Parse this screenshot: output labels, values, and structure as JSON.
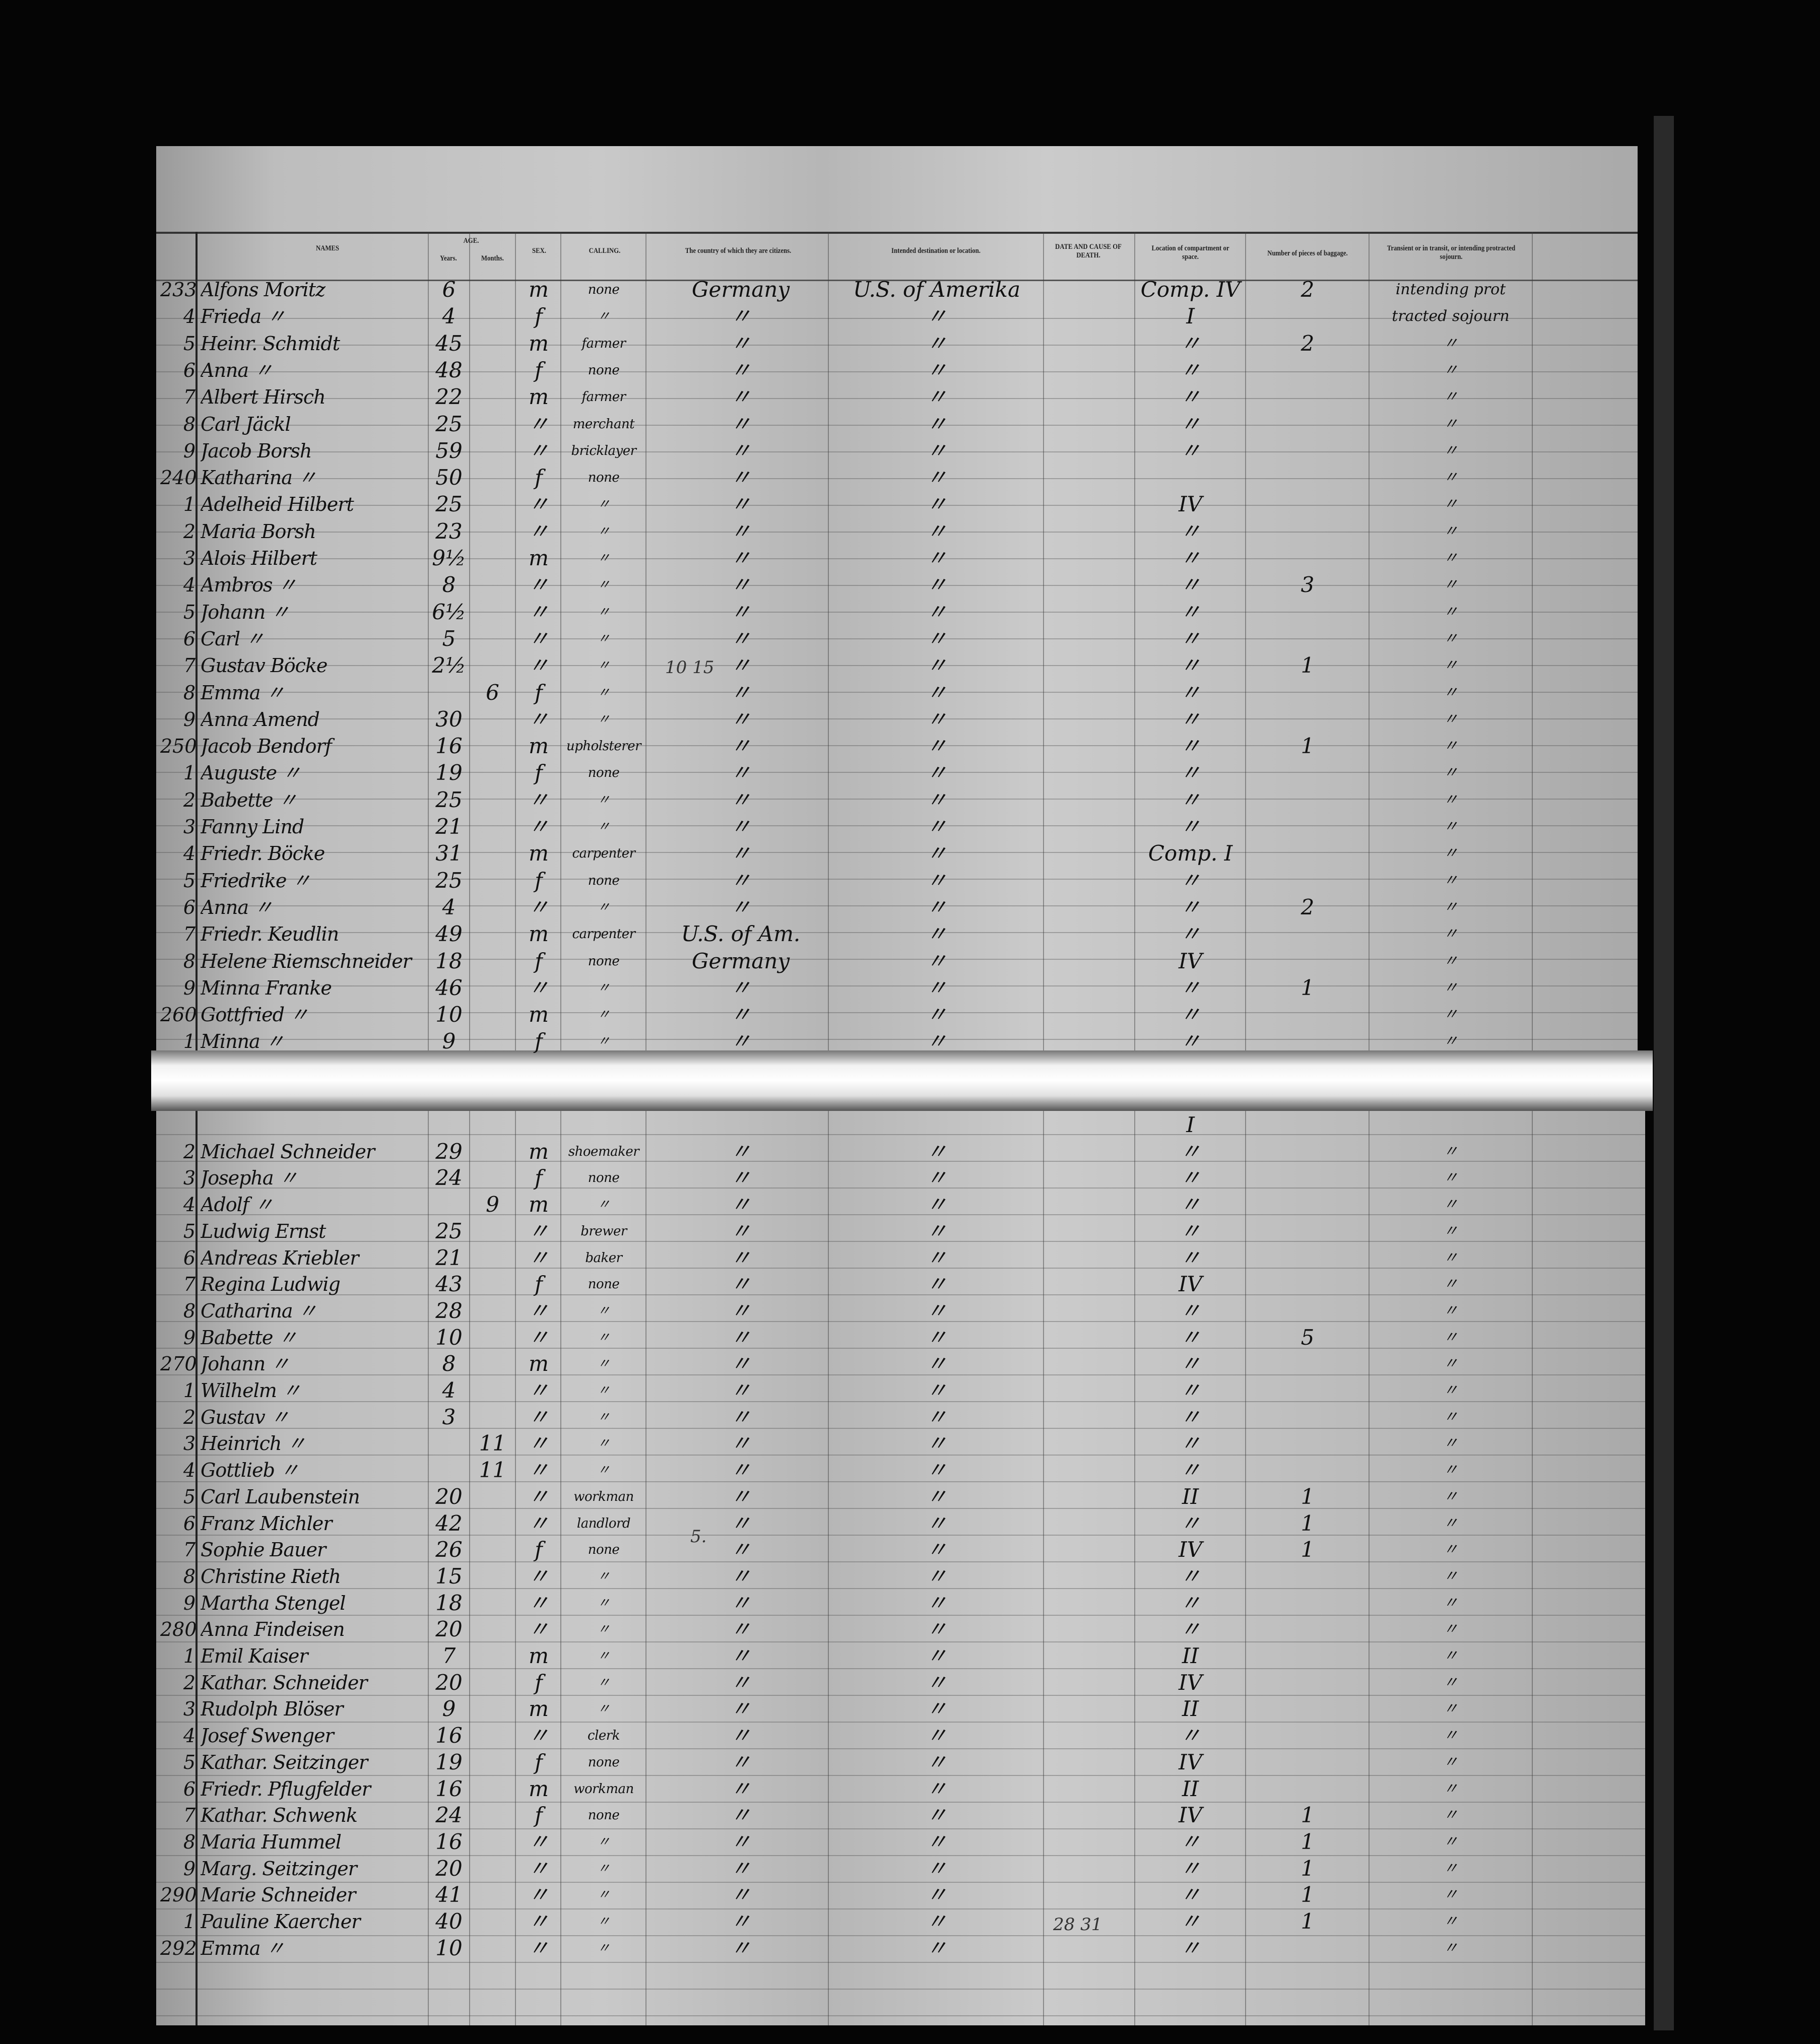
{
  "header": {
    "names": "NAMES",
    "age": "AGE.",
    "years": "Years.",
    "months": "Months.",
    "sex": "SEX.",
    "calling": "CALLING.",
    "country": "The country of which they are citizens.",
    "destination": "Intended destination or location.",
    "death": "DATE AND CAUSE OF DEATH.",
    "location": "Location of compartment or space.",
    "baggage": "Number of pieces of baggage.",
    "transient": "Transient or in transit, or intending protracted sojourn."
  },
  "annotations": {
    "a": "10 15",
    "b": "5.",
    "c": "28 31"
  },
  "rows_top": [
    [
      "233",
      "Alfons Moritz",
      "6",
      "",
      "m",
      "none",
      "Germany",
      "U.S. of Amerika",
      "Comp. IV",
      "2",
      "intending prot"
    ],
    [
      "4",
      "Frieda  〃",
      "4",
      "",
      "f",
      "〃",
      "〃",
      "〃",
      "I",
      "",
      "tracted sojourn"
    ],
    [
      "5",
      "Heinr. Schmidt",
      "45",
      "",
      "m",
      "farmer",
      "〃",
      "〃",
      "〃",
      "2",
      "〃"
    ],
    [
      "6",
      "Anna  〃",
      "48",
      "",
      "f",
      "none",
      "〃",
      "〃",
      "〃",
      "",
      "〃"
    ],
    [
      "7",
      "Albert Hirsch",
      "22",
      "",
      "m",
      "farmer",
      "〃",
      "〃",
      "〃",
      "",
      "〃"
    ],
    [
      "8",
      "Carl Jäckl",
      "25",
      "",
      "〃",
      "merchant",
      "〃",
      "〃",
      "〃",
      "",
      "〃"
    ],
    [
      "9",
      "Jacob Borsh",
      "59",
      "",
      "〃",
      "bricklayer",
      "〃",
      "〃",
      "〃",
      "",
      "〃"
    ],
    [
      "240",
      "Katharina  〃",
      "50",
      "",
      "f",
      "none",
      "〃",
      "〃",
      "",
      "",
      "〃"
    ],
    [
      "1",
      "Adelheid Hilbert",
      "25",
      "",
      "〃",
      "〃",
      "〃",
      "〃",
      "IV",
      "",
      "〃"
    ],
    [
      "2",
      "Maria Borsh",
      "23",
      "",
      "〃",
      "〃",
      "〃",
      "〃",
      "〃",
      "",
      "〃"
    ],
    [
      "3",
      "Alois Hilbert",
      "9½",
      "",
      "m",
      "〃",
      "〃",
      "〃",
      "〃",
      "",
      "〃"
    ],
    [
      "4",
      "Ambros  〃",
      "8",
      "",
      "〃",
      "〃",
      "〃",
      "〃",
      "〃",
      "3",
      "〃"
    ],
    [
      "5",
      "Johann  〃",
      "6½",
      "",
      "〃",
      "〃",
      "〃",
      "〃",
      "〃",
      "",
      "〃"
    ],
    [
      "6",
      "Carl  〃",
      "5",
      "",
      "〃",
      "〃",
      "〃",
      "〃",
      "〃",
      "",
      "〃"
    ],
    [
      "7",
      "Gustav Böcke",
      "2½",
      "",
      "〃",
      "〃",
      "〃",
      "〃",
      "〃",
      "1",
      "〃"
    ],
    [
      "8",
      "Emma  〃",
      "",
      "6",
      "f",
      "〃",
      "〃",
      "〃",
      "〃",
      "",
      "〃"
    ],
    [
      "9",
      "Anna Amend",
      "30",
      "",
      "〃",
      "〃",
      "〃",
      "〃",
      "〃",
      "",
      "〃"
    ],
    [
      "250",
      "Jacob Bendorf",
      "16",
      "",
      "m",
      "upholsterer",
      "〃",
      "〃",
      "〃",
      "1",
      "〃"
    ],
    [
      "1",
      "Auguste  〃",
      "19",
      "",
      "f",
      "none",
      "〃",
      "〃",
      "〃",
      "",
      "〃"
    ],
    [
      "2",
      "Babette  〃",
      "25",
      "",
      "〃",
      "〃",
      "〃",
      "〃",
      "〃",
      "",
      "〃"
    ],
    [
      "3",
      "Fanny Lind",
      "21",
      "",
      "〃",
      "〃",
      "〃",
      "〃",
      "〃",
      "",
      "〃"
    ],
    [
      "4",
      "Friedr. Böcke",
      "31",
      "",
      "m",
      "carpenter",
      "〃",
      "〃",
      "Comp. I",
      "",
      "〃"
    ],
    [
      "5",
      "Friedrike  〃",
      "25",
      "",
      "f",
      "none",
      "〃",
      "〃",
      "〃",
      "",
      "〃"
    ],
    [
      "6",
      "Anna  〃",
      "4",
      "",
      "〃",
      "〃",
      "〃",
      "〃",
      "〃",
      "2",
      "〃"
    ],
    [
      "7",
      "Friedr. Keudlin",
      "49",
      "",
      "m",
      "carpenter",
      "U.S. of Am.",
      "〃",
      "〃",
      "",
      "〃"
    ],
    [
      "8",
      "Helene Riemschneider",
      "18",
      "",
      "f",
      "none",
      "Germany",
      "〃",
      "IV",
      "",
      "〃"
    ],
    [
      "9",
      "Minna Franke",
      "46",
      "",
      "〃",
      "〃",
      "〃",
      "〃",
      "〃",
      "1",
      "〃"
    ],
    [
      "260",
      "Gottfried  〃",
      "10",
      "",
      "m",
      "〃",
      "〃",
      "〃",
      "〃",
      "",
      "〃"
    ],
    [
      "1",
      "Minna  〃",
      "9",
      "",
      "f",
      "〃",
      "〃",
      "〃",
      "〃",
      "",
      "〃"
    ]
  ],
  "rows_bottom": [
    [
      "",
      "",
      "",
      "",
      "",
      "",
      "",
      "",
      "I",
      "",
      ""
    ],
    [
      "2",
      "Michael Schneider",
      "29",
      "",
      "m",
      "shoemaker",
      "〃",
      "〃",
      "〃",
      "",
      "〃"
    ],
    [
      "3",
      "Josepha  〃",
      "24",
      "",
      "f",
      "none",
      "〃",
      "〃",
      "〃",
      "",
      "〃"
    ],
    [
      "4",
      "Adolf  〃",
      "",
      "9",
      "m",
      "〃",
      "〃",
      "〃",
      "〃",
      "",
      "〃"
    ],
    [
      "5",
      "Ludwig Ernst",
      "25",
      "",
      "〃",
      "brewer",
      "〃",
      "〃",
      "〃",
      "",
      "〃"
    ],
    [
      "6",
      "Andreas Kriebler",
      "21",
      "",
      "〃",
      "baker",
      "〃",
      "〃",
      "〃",
      "",
      "〃"
    ],
    [
      "7",
      "Regina Ludwig",
      "43",
      "",
      "f",
      "none",
      "〃",
      "〃",
      "IV",
      "",
      "〃"
    ],
    [
      "8",
      "Catharina  〃",
      "28",
      "",
      "〃",
      "〃",
      "〃",
      "〃",
      "〃",
      "",
      "〃"
    ],
    [
      "9",
      "Babette  〃",
      "10",
      "",
      "〃",
      "〃",
      "〃",
      "〃",
      "〃",
      "5",
      "〃"
    ],
    [
      "270",
      "Johann  〃",
      "8",
      "",
      "m",
      "〃",
      "〃",
      "〃",
      "〃",
      "",
      "〃"
    ],
    [
      "1",
      "Wilhelm  〃",
      "4",
      "",
      "〃",
      "〃",
      "〃",
      "〃",
      "〃",
      "",
      "〃"
    ],
    [
      "2",
      "Gustav  〃",
      "3",
      "",
      "〃",
      "〃",
      "〃",
      "〃",
      "〃",
      "",
      "〃"
    ],
    [
      "3",
      "Heinrich  〃",
      "",
      "11",
      "〃",
      "〃",
      "〃",
      "〃",
      "〃",
      "",
      "〃"
    ],
    [
      "4",
      "Gottlieb  〃",
      "",
      "11",
      "〃",
      "〃",
      "〃",
      "〃",
      "〃",
      "",
      "〃"
    ],
    [
      "5",
      "Carl Laubenstein",
      "20",
      "",
      "〃",
      "workman",
      "〃",
      "〃",
      "II",
      "1",
      "〃"
    ],
    [
      "6",
      "Franz Michler",
      "42",
      "",
      "〃",
      "landlord",
      "〃",
      "〃",
      "〃",
      "1",
      "〃"
    ],
    [
      "7",
      "Sophie Bauer",
      "26",
      "",
      "f",
      "none",
      "〃",
      "〃",
      "IV",
      "1",
      "〃"
    ],
    [
      "8",
      "Christine Rieth",
      "15",
      "",
      "〃",
      "〃",
      "〃",
      "〃",
      "〃",
      "",
      "〃"
    ],
    [
      "9",
      "Martha Stengel",
      "18",
      "",
      "〃",
      "〃",
      "〃",
      "〃",
      "〃",
      "",
      "〃"
    ],
    [
      "280",
      "Anna Findeisen",
      "20",
      "",
      "〃",
      "〃",
      "〃",
      "〃",
      "〃",
      "",
      "〃"
    ],
    [
      "1",
      "Emil Kaiser",
      "7",
      "",
      "m",
      "〃",
      "〃",
      "〃",
      "II",
      "",
      "〃"
    ],
    [
      "2",
      "Kathar. Schneider",
      "20",
      "",
      "f",
      "〃",
      "〃",
      "〃",
      "IV",
      "",
      "〃"
    ],
    [
      "3",
      "Rudolph Blöser",
      "9",
      "",
      "m",
      "〃",
      "〃",
      "〃",
      "II",
      "",
      "〃"
    ],
    [
      "4",
      "Josef Swenger",
      "16",
      "",
      "〃",
      "clerk",
      "〃",
      "〃",
      "〃",
      "",
      "〃"
    ],
    [
      "5",
      "Kathar. Seitzinger",
      "19",
      "",
      "f",
      "none",
      "〃",
      "〃",
      "IV",
      "",
      "〃"
    ],
    [
      "6",
      "Friedr. Pflugfelder",
      "16",
      "",
      "m",
      "workman",
      "〃",
      "〃",
      "II",
      "",
      "〃"
    ],
    [
      "7",
      "Kathar. Schwenk",
      "24",
      "",
      "f",
      "none",
      "〃",
      "〃",
      "IV",
      "1",
      "〃"
    ],
    [
      "8",
      "Maria Hummel",
      "16",
      "",
      "〃",
      "〃",
      "〃",
      "〃",
      "〃",
      "1",
      "〃"
    ],
    [
      "9",
      "Marg. Seitzinger",
      "20",
      "",
      "〃",
      "〃",
      "〃",
      "〃",
      "〃",
      "1",
      "〃"
    ],
    [
      "290",
      "Marie Schneider",
      "41",
      "",
      "〃",
      "〃",
      "〃",
      "〃",
      "〃",
      "1",
      "〃"
    ],
    [
      "1",
      "Pauline Kaercher",
      "40",
      "",
      "〃",
      "〃",
      "〃",
      "〃",
      "〃",
      "1",
      "〃"
    ],
    [
      "292",
      "Emma  〃",
      "10",
      "",
      "〃",
      "〃",
      "〃",
      "〃",
      "〃",
      "",
      "〃"
    ]
  ]
}
